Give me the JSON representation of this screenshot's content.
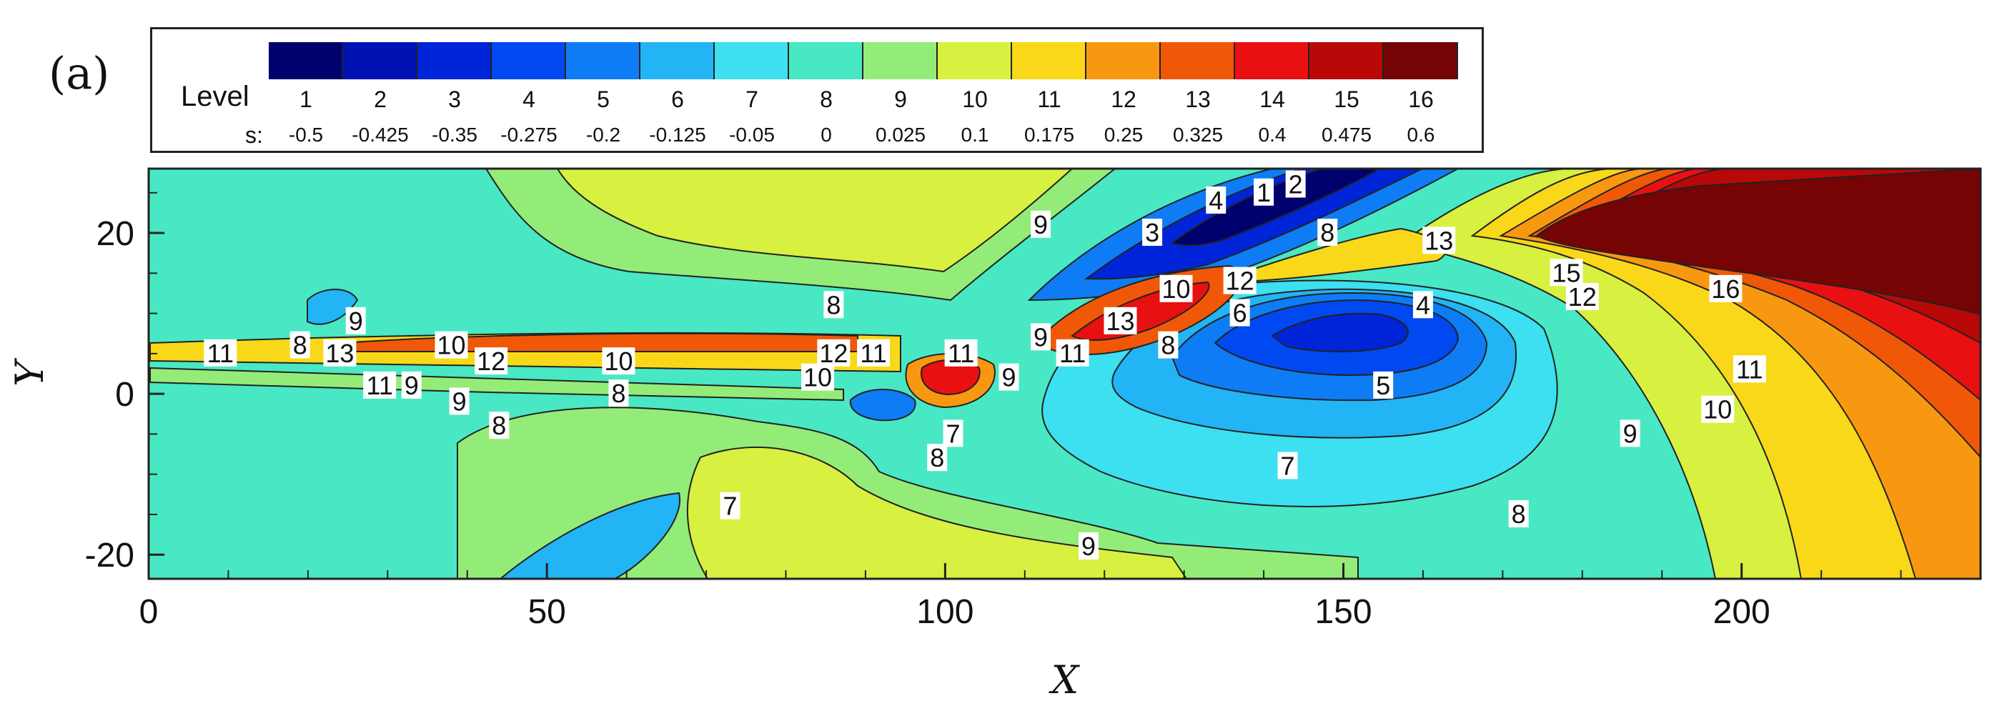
{
  "panel_label": "(a)",
  "legend": {
    "level_label": "Level",
    "s_label": "s:",
    "levels": [
      "1",
      "2",
      "3",
      "4",
      "5",
      "6",
      "7",
      "8",
      "9",
      "10",
      "11",
      "12",
      "13",
      "14",
      "15",
      "16"
    ],
    "s_values": [
      "-0.5",
      "-0.425",
      "-0.35",
      "-0.275",
      "-0.2",
      "-0.125",
      "-0.05",
      "0",
      "0.025",
      "0.1",
      "0.175",
      "0.25",
      "0.325",
      "0.4",
      "0.475",
      "0.6"
    ],
    "colors": [
      "#00006e",
      "#0012b4",
      "#0024d8",
      "#0048f0",
      "#0e7cf4",
      "#22b4f4",
      "#3ce0f0",
      "#48e8c4",
      "#94ec78",
      "#d8f040",
      "#f8d818",
      "#f89810",
      "#f05808",
      "#e81010",
      "#b80808",
      "#760404"
    ]
  },
  "chart_data": {
    "type": "heatmap",
    "subtype": "filled contour",
    "xlabel": "X",
    "ylabel": "Y",
    "xlim": [
      0,
      230
    ],
    "ylim": [
      -23,
      28
    ],
    "xticks": [
      "0",
      "50",
      "100",
      "150",
      "200"
    ],
    "yticks": [
      "-20",
      "0",
      "20"
    ],
    "contour_labels": [
      {
        "x": 9,
        "y": 5,
        "level": "11"
      },
      {
        "x": 19,
        "y": 6,
        "level": "8"
      },
      {
        "x": 24,
        "y": 5,
        "level": "13"
      },
      {
        "x": 26,
        "y": 9,
        "level": "9"
      },
      {
        "x": 38,
        "y": 6,
        "level": "10"
      },
      {
        "x": 43,
        "y": 4,
        "level": "12"
      },
      {
        "x": 29,
        "y": 1,
        "level": "11"
      },
      {
        "x": 33,
        "y": 1,
        "level": "9"
      },
      {
        "x": 39,
        "y": -1,
        "level": "9"
      },
      {
        "x": 44,
        "y": -4,
        "level": "8"
      },
      {
        "x": 59,
        "y": 4,
        "level": "10"
      },
      {
        "x": 59,
        "y": 0,
        "level": "8"
      },
      {
        "x": 86,
        "y": 5,
        "level": "12"
      },
      {
        "x": 91,
        "y": 5,
        "level": "11"
      },
      {
        "x": 84,
        "y": 2,
        "level": "10"
      },
      {
        "x": 86,
        "y": 11,
        "level": "8"
      },
      {
        "x": 112,
        "y": 21,
        "level": "9"
      },
      {
        "x": 102,
        "y": 5,
        "level": "11"
      },
      {
        "x": 108,
        "y": 2,
        "level": "9"
      },
      {
        "x": 112,
        "y": 7,
        "level": "9"
      },
      {
        "x": 116,
        "y": 5,
        "level": "11"
      },
      {
        "x": 101,
        "y": -5,
        "level": "7"
      },
      {
        "x": 99,
        "y": -8,
        "level": "8"
      },
      {
        "x": 73,
        "y": -14,
        "level": "7"
      },
      {
        "x": 122,
        "y": 9,
        "level": "13"
      },
      {
        "x": 126,
        "y": 20,
        "level": "3"
      },
      {
        "x": 129,
        "y": 13,
        "level": "10"
      },
      {
        "x": 128,
        "y": 6,
        "level": "8"
      },
      {
        "x": 134,
        "y": 24,
        "level": "4"
      },
      {
        "x": 140,
        "y": 25,
        "level": "1"
      },
      {
        "x": 144,
        "y": 26,
        "level": "2"
      },
      {
        "x": 137,
        "y": 14,
        "level": "12"
      },
      {
        "x": 137,
        "y": 10,
        "level": "6"
      },
      {
        "x": 155,
        "y": 1,
        "level": "5"
      },
      {
        "x": 143,
        "y": -9,
        "level": "7"
      },
      {
        "x": 148,
        "y": 20,
        "level": "8"
      },
      {
        "x": 162,
        "y": 19,
        "level": "13"
      },
      {
        "x": 160,
        "y": 11,
        "level": "4"
      },
      {
        "x": 178,
        "y": 15,
        "level": "15"
      },
      {
        "x": 180,
        "y": 12,
        "level": "12"
      },
      {
        "x": 198,
        "y": 13,
        "level": "16"
      },
      {
        "x": 201,
        "y": 3,
        "level": "11"
      },
      {
        "x": 197,
        "y": -2,
        "level": "10"
      },
      {
        "x": 186,
        "y": -5,
        "level": "9"
      },
      {
        "x": 172,
        "y": -15,
        "level": "8"
      },
      {
        "x": 118,
        "y": -19,
        "level": "9"
      }
    ]
  }
}
